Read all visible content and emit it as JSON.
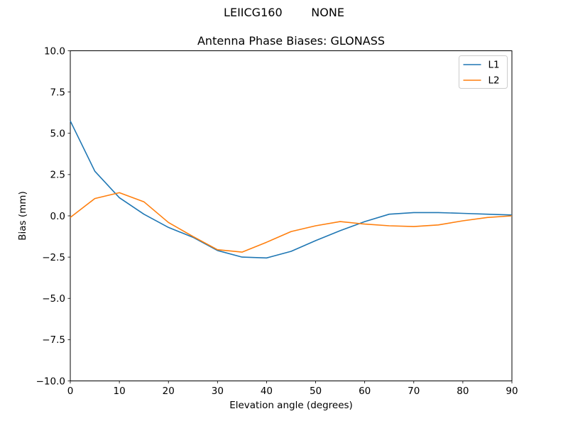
{
  "figure": {
    "suptitle": "LEIICG160        NONE",
    "background": "#ffffff"
  },
  "chart_data": {
    "type": "line",
    "title": "Antenna Phase Biases: GLONASS",
    "xlabel": "Elevation angle (degrees)",
    "ylabel": "Bias (mm)",
    "xlim": [
      0,
      90
    ],
    "ylim": [
      -10,
      10
    ],
    "grid": false,
    "legend_position": "upper right",
    "axis_color": "#000000",
    "xticks": [
      {
        "value": 0,
        "label": "0"
      },
      {
        "value": 10,
        "label": "10"
      },
      {
        "value": 20,
        "label": "20"
      },
      {
        "value": 30,
        "label": "30"
      },
      {
        "value": 40,
        "label": "40"
      },
      {
        "value": 50,
        "label": "50"
      },
      {
        "value": 60,
        "label": "60"
      },
      {
        "value": 70,
        "label": "70"
      },
      {
        "value": 80,
        "label": "80"
      },
      {
        "value": 90,
        "label": "90"
      }
    ],
    "yticks": [
      {
        "value": -10,
        "label": "−10.0"
      },
      {
        "value": -7.5,
        "label": "−7.5"
      },
      {
        "value": -5,
        "label": "−5.0"
      },
      {
        "value": -2.5,
        "label": "−2.5"
      },
      {
        "value": 0,
        "label": "0.0"
      },
      {
        "value": 2.5,
        "label": "2.5"
      },
      {
        "value": 5,
        "label": "5.0"
      },
      {
        "value": 7.5,
        "label": "7.5"
      },
      {
        "value": 10,
        "label": "10.0"
      }
    ],
    "x": [
      0,
      5,
      10,
      15,
      20,
      25,
      30,
      35,
      40,
      45,
      50,
      55,
      60,
      65,
      70,
      75,
      80,
      85,
      90
    ],
    "series": [
      {
        "name": "L1",
        "color": "#1f77b4",
        "values": [
          5.75,
          2.7,
          1.1,
          0.1,
          -0.7,
          -1.3,
          -2.1,
          -2.5,
          -2.55,
          -2.15,
          -1.5,
          -0.9,
          -0.35,
          0.1,
          0.2,
          0.2,
          0.15,
          0.1,
          0.05
        ]
      },
      {
        "name": "L2",
        "color": "#ff7f0e",
        "values": [
          -0.1,
          1.05,
          1.4,
          0.85,
          -0.4,
          -1.25,
          -2.05,
          -2.2,
          -1.6,
          -0.95,
          -0.6,
          -0.35,
          -0.5,
          -0.6,
          -0.65,
          -0.55,
          -0.3,
          -0.1,
          0.0
        ]
      }
    ]
  }
}
